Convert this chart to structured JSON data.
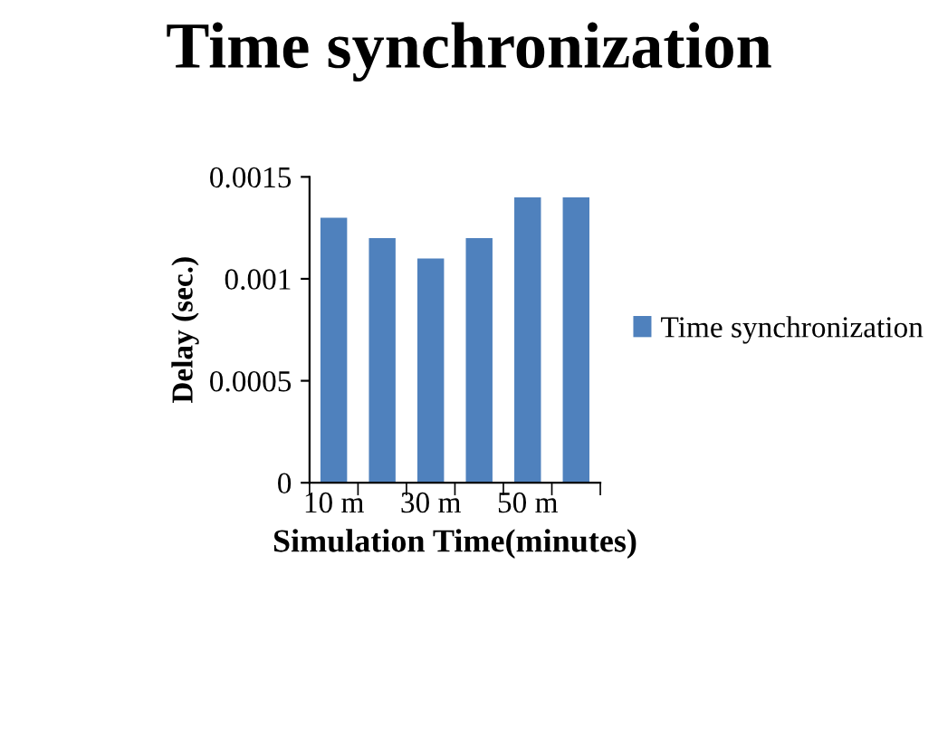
{
  "chart_data": {
    "type": "bar",
    "title": "Time synchronization",
    "xlabel": "Simulation Time(minutes)",
    "ylabel": "Delay (sec.)",
    "categories": [
      "10 m",
      null,
      "30 m",
      null,
      "50 m",
      null
    ],
    "series": [
      {
        "name": "Time synchronization",
        "color": "#4f81bd",
        "values": [
          0.0013,
          0.0012,
          0.0011,
          0.0012,
          0.0014,
          0.0014
        ]
      }
    ],
    "ylim": [
      0,
      0.0015
    ],
    "yticks": [
      0,
      0.0005,
      0.001,
      0.0015
    ],
    "grid": false,
    "legend": "right"
  }
}
